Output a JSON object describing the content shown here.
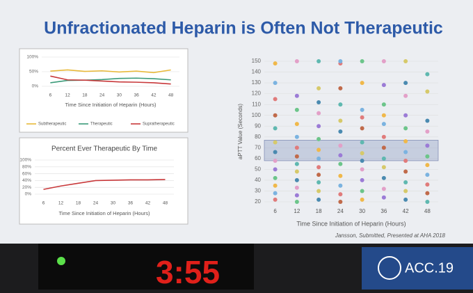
{
  "title": "Unfractionated Heparin is Often Not Therapeutic",
  "citation": "Jansson, Submitted, Presented at AHA 2018",
  "logo": "ACC.19",
  "timer": "3:55",
  "chart_data": [
    {
      "type": "line",
      "x": [
        6,
        12,
        18,
        24,
        30,
        36,
        42,
        48
      ],
      "xlim": [
        3,
        51
      ],
      "ylim": [
        0,
        100
      ],
      "yticks": [
        {
          "value": 0,
          "label": "0%"
        },
        {
          "value": 50,
          "label": "50%"
        },
        {
          "value": 100,
          "label": "100%"
        }
      ],
      "x_label": "Time Since Initiation of Heparin (Hours)",
      "legend": "bottom",
      "series": [
        {
          "name": "Subtherapeutic",
          "color": "#e8b93a",
          "values": [
            52,
            56,
            51,
            53,
            49,
            52,
            47,
            56
          ]
        },
        {
          "name": "Therapeutic",
          "color": "#3a9a78",
          "values": [
            12,
            20,
            21,
            23,
            27,
            28,
            26,
            22
          ]
        },
        {
          "name": "Supratherapeutic",
          "color": "#c8383a",
          "values": [
            35,
            22,
            21,
            18,
            15,
            14,
            12,
            8
          ]
        }
      ]
    },
    {
      "type": "line",
      "title": "Percent Ever Therapeutic By Time",
      "x": [
        6,
        12,
        18,
        24,
        30,
        36,
        42,
        48
      ],
      "xlim": [
        3,
        51
      ],
      "ylim": [
        0,
        100
      ],
      "yticks": [
        {
          "value": 0,
          "label": "0%"
        },
        {
          "value": 20,
          "label": "20%"
        },
        {
          "value": 40,
          "label": "40%"
        },
        {
          "value": 60,
          "label": "60%"
        },
        {
          "value": 80,
          "label": "80%"
        },
        {
          "value": 100,
          "label": "100%"
        }
      ],
      "x_label": "Time Since Initiation of Heparin (Hours)",
      "series": [
        {
          "name": null,
          "color": "#c8383a",
          "values": [
            14,
            24,
            32,
            40,
            41,
            42,
            42,
            43
          ]
        }
      ]
    },
    {
      "type": "scatter",
      "xlim": [
        3,
        51
      ],
      "ylim": [
        20,
        150
      ],
      "y_label": "aPTT Value (Seconds)",
      "x_label": "Time Since Initiation of Heparin (Hours)",
      "xticks": [
        6,
        12,
        18,
        24,
        30,
        36,
        42,
        48
      ],
      "yticks": [
        20,
        30,
        40,
        50,
        60,
        70,
        80,
        90,
        100,
        110,
        120,
        130,
        140,
        150
      ],
      "band": [
        58,
        77
      ],
      "band_color": "#9aa6c8",
      "colors": [
        "#e07b7b",
        "#7bb3e0",
        "#f0b84a",
        "#6cc58a",
        "#9b7bd6",
        "#e3a0c8",
        "#4a8ab0",
        "#d6c96a",
        "#5fb8b0",
        "#c06a4a"
      ],
      "x": [
        6,
        6,
        6,
        6,
        6,
        6,
        6,
        6,
        6,
        6,
        6,
        6,
        6,
        12,
        12,
        12,
        12,
        12,
        12,
        12,
        12,
        12,
        12,
        12,
        12,
        12,
        18,
        18,
        18,
        18,
        18,
        18,
        18,
        18,
        18,
        18,
        18,
        18,
        18,
        24,
        24,
        24,
        24,
        24,
        24,
        24,
        24,
        24,
        24,
        24,
        24,
        24,
        30,
        30,
        30,
        30,
        30,
        30,
        30,
        30,
        30,
        30,
        30,
        30,
        36,
        36,
        36,
        36,
        36,
        36,
        36,
        36,
        36,
        36,
        36,
        36,
        42,
        42,
        42,
        42,
        42,
        42,
        42,
        42,
        42,
        42,
        42,
        42,
        48,
        48,
        48,
        48,
        48,
        48,
        48,
        48,
        48,
        48,
        48
      ],
      "y": [
        22,
        28,
        35,
        42,
        50,
        58,
        66,
        75,
        88,
        100,
        115,
        130,
        148,
        20,
        26,
        33,
        40,
        48,
        55,
        62,
        70,
        80,
        92,
        105,
        118,
        150,
        22,
        30,
        38,
        45,
        52,
        60,
        68,
        78,
        90,
        102,
        112,
        125,
        150,
        20,
        27,
        35,
        44,
        55,
        63,
        72,
        85,
        95,
        110,
        125,
        148,
        150,
        22,
        30,
        40,
        50,
        58,
        65,
        75,
        88,
        98,
        105,
        130,
        150,
        24,
        32,
        42,
        52,
        60,
        70,
        80,
        92,
        100,
        110,
        128,
        150,
        22,
        30,
        38,
        48,
        58,
        66,
        76,
        88,
        100,
        118,
        130,
        150,
        20,
        28,
        36,
        45,
        54,
        62,
        72,
        85,
        95,
        122,
        138
      ]
    }
  ]
}
